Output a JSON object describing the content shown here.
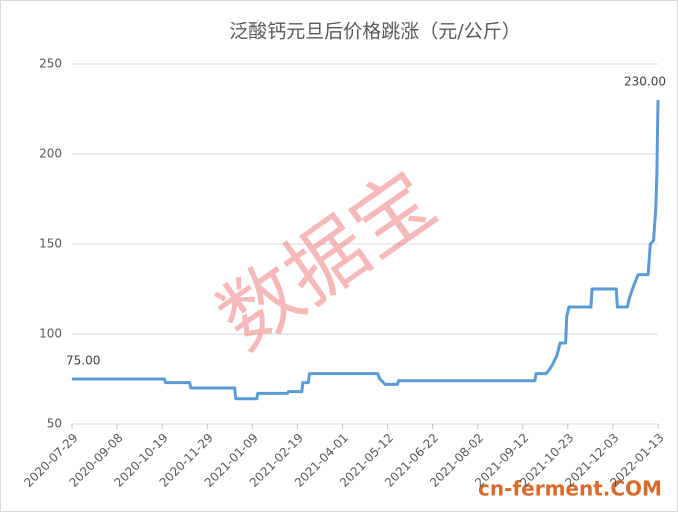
{
  "chart_data": {
    "type": "line",
    "title": "泛酸钙元旦后价格跳涨（元/公斤）",
    "watermark": "数据宝",
    "source_mark": "cn-ferment.COM",
    "x": [
      "2020-07-29",
      "2020-10-21",
      "2020-10-22",
      "2020-11-13",
      "2020-11-14",
      "2020-12-24",
      "2020-12-25",
      "2021-01-13",
      "2021-01-14",
      "2021-02-10",
      "2021-02-11",
      "2021-02-23",
      "2021-02-24",
      "2021-03-01",
      "2021-03-02",
      "2021-05-03",
      "2021-05-05",
      "2021-05-10",
      "2021-05-21",
      "2021-05-22",
      "2021-09-23",
      "2021-09-24",
      "2021-10-03",
      "2021-10-06",
      "2021-10-09",
      "2021-10-13",
      "2021-10-16",
      "2021-10-21",
      "2021-10-22",
      "2021-10-24",
      "2021-11-13",
      "2021-11-14",
      "2021-12-06",
      "2021-12-07",
      "2021-12-16",
      "2021-12-18",
      "2021-12-22",
      "2021-12-26",
      "2022-01-04",
      "2022-01-06",
      "2022-01-09",
      "2022-01-11",
      "2022-01-12",
      "2022-01-13"
    ],
    "series": [
      {
        "color": "#5b9bd5",
        "values": [
          75,
          75,
          73,
          73,
          70,
          70,
          64,
          64,
          67,
          67,
          68,
          68,
          73,
          73,
          78,
          78,
          75,
          72,
          72,
          74,
          74,
          78,
          78,
          80,
          83,
          88,
          95,
          95,
          110,
          115,
          115,
          125,
          125,
          115,
          115,
          120,
          127,
          133,
          133,
          150,
          152,
          170,
          190,
          230
        ],
        "value_labels": [
          "75.00",
          null,
          null,
          null,
          null,
          null,
          null,
          null,
          null,
          null,
          null,
          null,
          null,
          null,
          null,
          null,
          null,
          null,
          null,
          null,
          null,
          null,
          null,
          null,
          null,
          null,
          null,
          null,
          null,
          null,
          null,
          null,
          null,
          null,
          null,
          null,
          null,
          null,
          null,
          null,
          null,
          null,
          null,
          "230.00"
        ]
      }
    ],
    "xlim": [
      "2020-07-29",
      "2022-01-13"
    ],
    "xticks": [
      "2020-07-29",
      "2020-09-08",
      "2020-10-19",
      "2020-11-29",
      "2021-01-09",
      "2021-02-19",
      "2021-04-01",
      "2021-05-12",
      "2021-06-22",
      "2021-08-02",
      "2021-09-12",
      "2021-10-23",
      "2021-12-03",
      "2022-01-13"
    ],
    "ylim": [
      50,
      250
    ],
    "yticks": [
      50,
      100,
      150,
      200,
      250
    ],
    "grid": true
  }
}
